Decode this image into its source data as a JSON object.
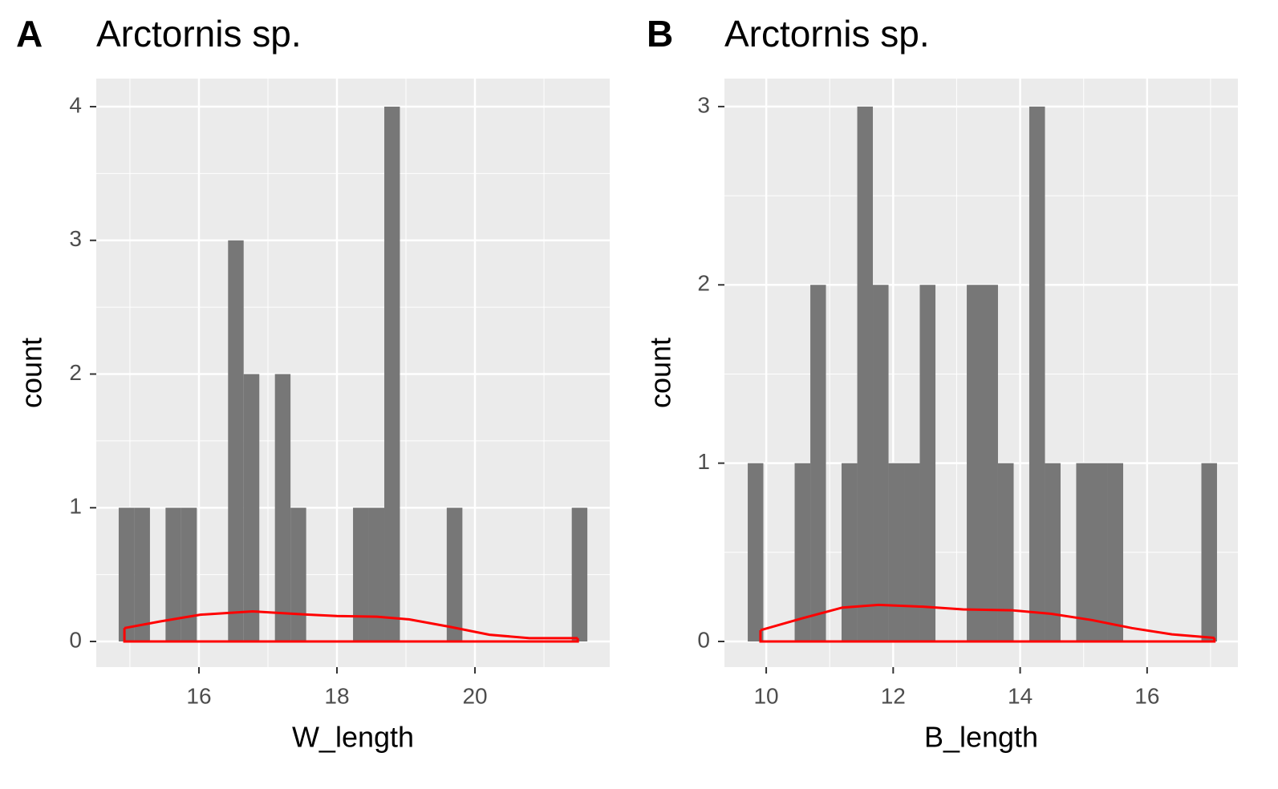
{
  "chart_data": [
    {
      "type": "histogram",
      "tag": "A",
      "title": "Arctornis sp.",
      "xlabel": "W_length",
      "ylabel": "count",
      "bins": [
        14.837,
        15.063,
        15.29,
        15.516,
        15.743,
        15.969,
        16.195,
        16.422,
        16.648,
        16.875,
        17.101,
        17.327,
        17.554,
        17.78,
        18.007,
        18.233,
        18.459,
        18.686,
        18.912,
        19.139,
        19.365,
        19.591,
        19.818,
        20.044,
        20.271,
        20.497,
        20.723,
        20.95,
        21.176,
        21.403,
        21.629
      ],
      "counts": [
        1,
        1,
        0,
        1,
        1,
        0,
        0,
        3,
        2,
        0,
        2,
        1,
        0,
        0,
        0,
        1,
        1,
        4,
        0,
        0,
        0,
        1,
        0,
        0,
        0,
        0,
        0,
        0,
        0,
        1
      ],
      "color": "#777777",
      "density": {
        "x": [
          14.92,
          15.44,
          16.02,
          16.78,
          17.42,
          18.0,
          18.58,
          19.05,
          19.63,
          20.21,
          20.79,
          21.49
        ],
        "y": [
          0.1,
          0.15,
          0.2,
          0.225,
          0.205,
          0.19,
          0.185,
          0.165,
          0.11,
          0.05,
          0.025,
          0.025
        ],
        "color": "#ff0000"
      },
      "xlim": [
        14.512,
        21.953
      ],
      "ylim": [
        -0.192,
        4.21
      ],
      "xticks": [
        16,
        18,
        20
      ],
      "yticks": [
        0,
        1,
        2,
        3,
        4
      ],
      "grid": true
    },
    {
      "type": "histogram",
      "tag": "B",
      "title": "Arctornis sp.",
      "xlabel": "B_length",
      "ylabel": "count",
      "bins": [
        9.709,
        9.955,
        10.202,
        10.448,
        10.695,
        10.941,
        11.187,
        11.434,
        11.68,
        11.927,
        12.173,
        12.419,
        12.666,
        12.912,
        13.159,
        13.405,
        13.651,
        13.898,
        14.144,
        14.391,
        14.637,
        14.883,
        15.13,
        15.376,
        15.623,
        15.869,
        16.115,
        16.362,
        16.608,
        16.855,
        17.101
      ],
      "counts": [
        1,
        0,
        0,
        1,
        2,
        0,
        1,
        3,
        2,
        1,
        1,
        2,
        0,
        0,
        2,
        2,
        1,
        0,
        3,
        1,
        0,
        1,
        1,
        1,
        0,
        0,
        0,
        0,
        0,
        1
      ],
      "color": "#777777",
      "density": {
        "x": [
          9.91,
          10.57,
          11.2,
          11.77,
          12.47,
          13.1,
          13.86,
          14.49,
          15.13,
          15.76,
          16.39,
          17.06
        ],
        "y": [
          0.063,
          0.13,
          0.19,
          0.205,
          0.195,
          0.18,
          0.175,
          0.155,
          0.12,
          0.075,
          0.04,
          0.02
        ],
        "color": "#ff0000"
      },
      "xlim": [
        9.342,
        17.43
      ],
      "ylim": [
        -0.144,
        3.157
      ],
      "xticks": [
        10,
        12,
        14,
        16
      ],
      "yticks": [
        0,
        1,
        2,
        3
      ],
      "grid": true
    }
  ]
}
